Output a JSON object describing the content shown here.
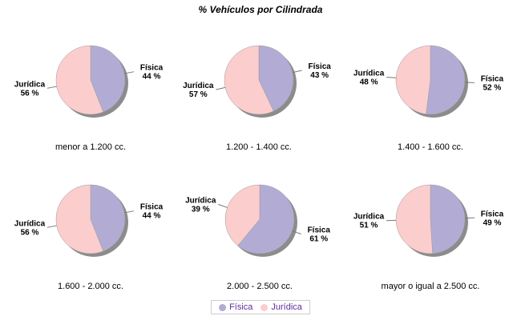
{
  "title": "% Vehículos por Cilindrada",
  "legend": {
    "position": "bottom-center",
    "items": [
      {
        "label": "Física",
        "color": "#B2ACD5"
      },
      {
        "label": "Jurídica",
        "color": "#FCCDCD"
      }
    ]
  },
  "colors": {
    "fisica": "#B2ACD5",
    "juridica": "#FCCDCD",
    "shadow": "#8C8C8C",
    "connector": "#777777",
    "slice_border": "#9A9A9A",
    "label_text": "#000000",
    "legend_text": "#5F2E9E",
    "legend_border": "#CCCCCC",
    "background": "#FFFFFF"
  },
  "chart_data": [
    {
      "type": "pie",
      "title": "menor a 1.200 cc.",
      "labels": [
        "Física",
        "Jurídica"
      ],
      "values": [
        44,
        56
      ],
      "value_labels": [
        "44 %",
        "56 %"
      ],
      "start_angle_deg": 0,
      "direction": "clockwise"
    },
    {
      "type": "pie",
      "title": "1.200 - 1.400 cc.",
      "labels": [
        "Física",
        "Jurídica"
      ],
      "values": [
        43,
        57
      ],
      "value_labels": [
        "43 %",
        "57 %"
      ],
      "start_angle_deg": 0,
      "direction": "clockwise"
    },
    {
      "type": "pie",
      "title": "1.400 - 1.600 cc.",
      "labels": [
        "Física",
        "Jurídica"
      ],
      "values": [
        52,
        48
      ],
      "value_labels": [
        "52 %",
        "48 %"
      ],
      "start_angle_deg": 0,
      "direction": "clockwise"
    },
    {
      "type": "pie",
      "title": "1.600 - 2.000 cc.",
      "labels": [
        "Física",
        "Jurídica"
      ],
      "values": [
        44,
        56
      ],
      "value_labels": [
        "44 %",
        "56 %"
      ],
      "start_angle_deg": 0,
      "direction": "clockwise"
    },
    {
      "type": "pie",
      "title": "2.000 - 2.500 cc.",
      "labels": [
        "Física",
        "Jurídica"
      ],
      "values": [
        61,
        39
      ],
      "value_labels": [
        "61 %",
        "39 %"
      ],
      "start_angle_deg": 0,
      "direction": "clockwise"
    },
    {
      "type": "pie",
      "title": "mayor o igual a 2.500 cc.",
      "labels": [
        "Física",
        "Jurídica"
      ],
      "values": [
        49,
        51
      ],
      "value_labels": [
        "49 %",
        "51 %"
      ],
      "start_angle_deg": 0,
      "direction": "clockwise"
    }
  ]
}
